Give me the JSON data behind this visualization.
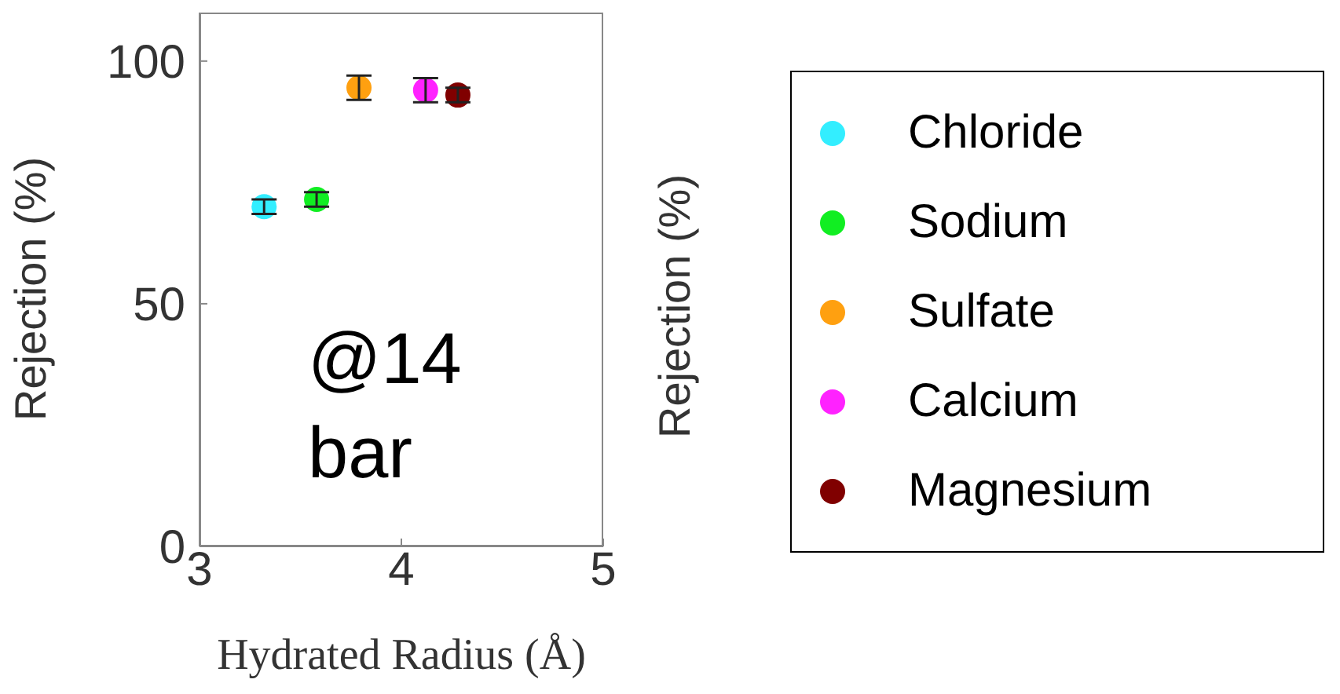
{
  "chart_data": {
    "type": "scatter",
    "xlabel": "Hydrated Radius (Å)",
    "ylabel": "Rejection (%)",
    "xlim": [
      3,
      5
    ],
    "xticks": [
      3,
      4,
      5
    ],
    "ylim": [
      0,
      110
    ],
    "yticks": [
      0,
      50,
      100
    ],
    "grid": false,
    "legend": "right",
    "marker": "circle",
    "series": [
      {
        "name": "Chloride",
        "color": "#33eeff",
        "x": [
          3.32
        ],
        "values": [
          70
        ],
        "errors": [
          1.5
        ]
      },
      {
        "name": "Sodium",
        "color": "#11ee22",
        "x": [
          3.58
        ],
        "values": [
          71.5
        ],
        "errors": [
          1.5
        ]
      },
      {
        "name": "Sulfate",
        "color": "#ffa010",
        "x": [
          3.79
        ],
        "values": [
          94.5
        ],
        "errors": [
          2.5
        ]
      },
      {
        "name": "Calcium",
        "color": "#ff22ff",
        "x": [
          4.12
        ],
        "values": [
          94
        ],
        "errors": [
          2.5
        ]
      },
      {
        "name": "Magnesium",
        "color": "#800000",
        "x": [
          4.28
        ],
        "values": [
          93
        ],
        "errors": [
          1.5
        ]
      }
    ],
    "annotations": [
      "@14 bar",
      "Rejection (%)"
    ]
  }
}
